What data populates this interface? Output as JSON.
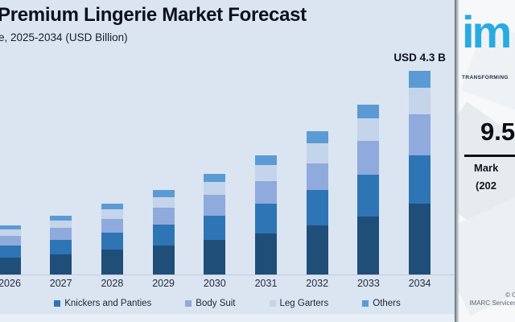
{
  "header": {
    "title": "Premium Lingerie Market Forecast",
    "subtitle": "e, 2025-2034 (USD Billion)"
  },
  "annotation": {
    "label": "USD 4.3 B"
  },
  "chart_data": {
    "type": "bar",
    "stacked": true,
    "title": "Premium Lingerie Market Forecast",
    "unit": "USD Billion",
    "categories": [
      "2026",
      "2027",
      "2028",
      "2029",
      "2030",
      "2031",
      "2032",
      "2033",
      "2034"
    ],
    "series": [
      {
        "name": "",
        "in_legend": false,
        "color": "#1f4e79",
        "values": [
          0.36,
          0.43,
          0.52,
          0.62,
          0.74,
          0.87,
          1.03,
          1.23,
          1.49
        ]
      },
      {
        "name": "Knickers and Panties",
        "in_legend": true,
        "color": "#2e75b6",
        "values": [
          0.25,
          0.3,
          0.36,
          0.43,
          0.51,
          0.62,
          0.76,
          0.88,
          1.03
        ]
      },
      {
        "name": "Body Suit",
        "in_legend": true,
        "color": "#8faadc",
        "values": [
          0.21,
          0.25,
          0.3,
          0.36,
          0.43,
          0.49,
          0.56,
          0.71,
          0.87
        ]
      },
      {
        "name": "Leg Garters",
        "in_legend": true,
        "color": "#c4d4ea",
        "values": [
          0.13,
          0.16,
          0.19,
          0.23,
          0.27,
          0.33,
          0.43,
          0.48,
          0.55
        ]
      },
      {
        "name": "Others",
        "in_legend": true,
        "color": "#5b9bd5",
        "values": [
          0.09,
          0.11,
          0.12,
          0.15,
          0.18,
          0.2,
          0.24,
          0.3,
          0.36
        ]
      }
    ],
    "totals": [
      1.04,
      1.25,
      1.49,
      1.79,
      2.13,
      2.51,
      3.02,
      3.6,
      4.3
    ],
    "annotations": [
      {
        "category": "2034",
        "label": "USD 4.3 B"
      }
    ],
    "ylim": [
      0,
      4.6
    ],
    "grid": false,
    "legend_position": "bottom"
  },
  "sidebar": {
    "logo_text": "im",
    "tagline": "TRANSFORMING",
    "stat_value": "9.5",
    "stat_line1": "Mark",
    "stat_line2": "(202",
    "copyright_line1": "© C",
    "copyright_line2": "IMARC Services"
  },
  "colors": {
    "chart_background": "#dbe5f1",
    "bottom_strip": "#e9eff7",
    "logo_blue": "#29abe2",
    "text_dark": "#0c111d"
  }
}
